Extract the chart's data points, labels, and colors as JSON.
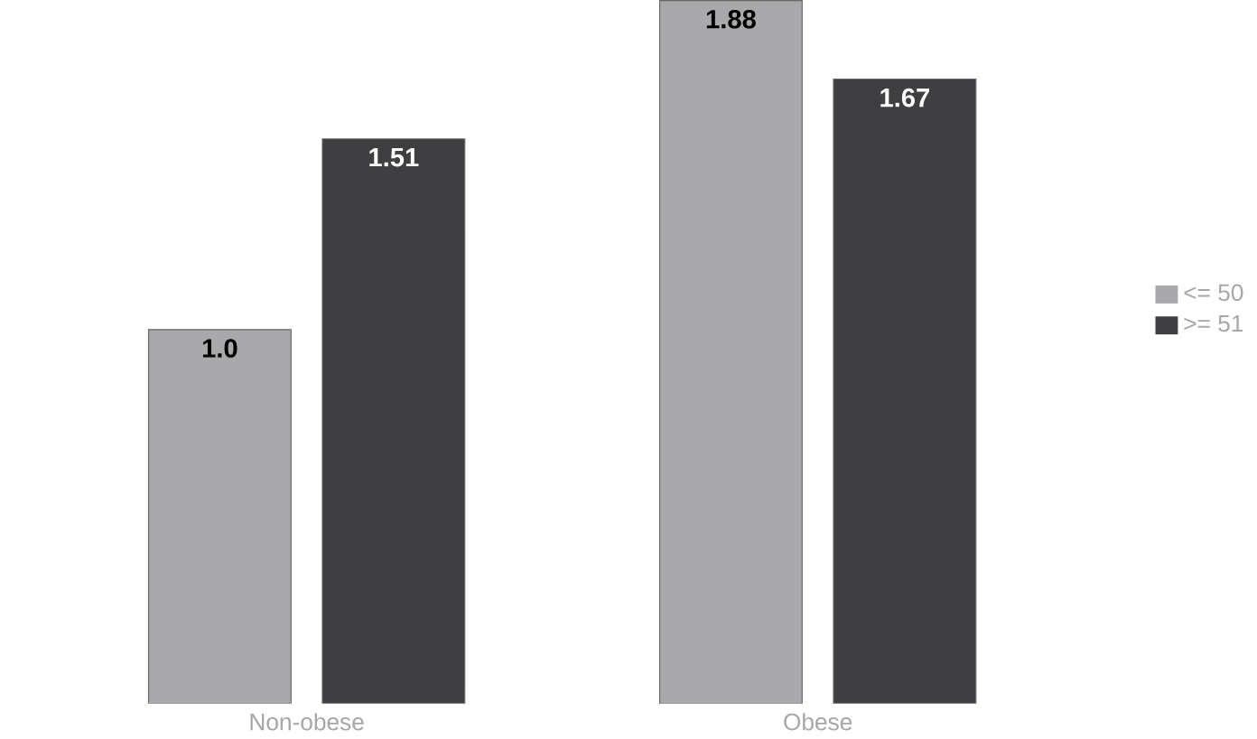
{
  "chart_data": {
    "type": "bar",
    "categories": [
      "Non-obese",
      "Obese"
    ],
    "series": [
      {
        "name": "<= 50",
        "color": "#a9a9ab",
        "values": [
          1.0,
          1.88
        ],
        "value_labels": [
          "1.0",
          "1.88"
        ]
      },
      {
        "name": ">= 51",
        "color": "#3f3f41",
        "values": [
          1.51,
          1.67
        ],
        "value_labels": [
          "1.51",
          "1.67"
        ]
      }
    ],
    "legend": "right"
  }
}
